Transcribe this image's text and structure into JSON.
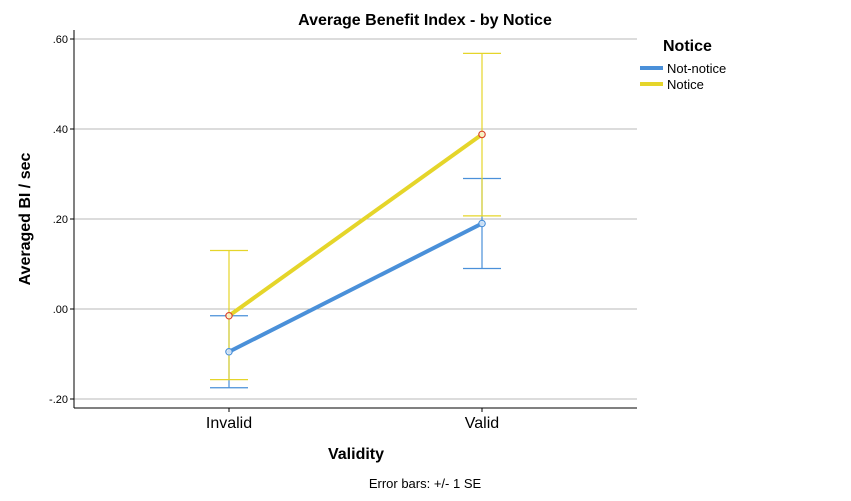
{
  "chart_data": {
    "type": "line",
    "title": "Average Benefit Index - by Notice",
    "xlabel": "Validity",
    "ylabel": "Averaged BI / sec",
    "categories": [
      "Invalid",
      "Valid"
    ],
    "ylim": [
      -0.22,
      0.62
    ],
    "yticks": [
      -0.2,
      0.0,
      0.2,
      0.4,
      0.6
    ],
    "ytick_labels": [
      "-.20",
      ".00",
      ".20",
      ".40",
      ".60"
    ],
    "grid": true,
    "legend": {
      "title": "Notice",
      "placement": "top-right"
    },
    "series": [
      {
        "name": "Not-notice",
        "color": "#4a90d9",
        "marker_stroke": "#4a90d9",
        "values": [
          -0.095,
          0.19
        ],
        "error_low": [
          -0.175,
          0.09
        ],
        "error_high": [
          -0.015,
          0.29
        ]
      },
      {
        "name": "Notice",
        "color": "#e5d52a",
        "marker_stroke": "#d9472b",
        "values": [
          -0.015,
          0.388
        ],
        "error_low": [
          -0.157,
          0.207
        ],
        "error_high": [
          0.13,
          0.568
        ]
      }
    ],
    "note": "Error bars: +/- 1 SE"
  }
}
